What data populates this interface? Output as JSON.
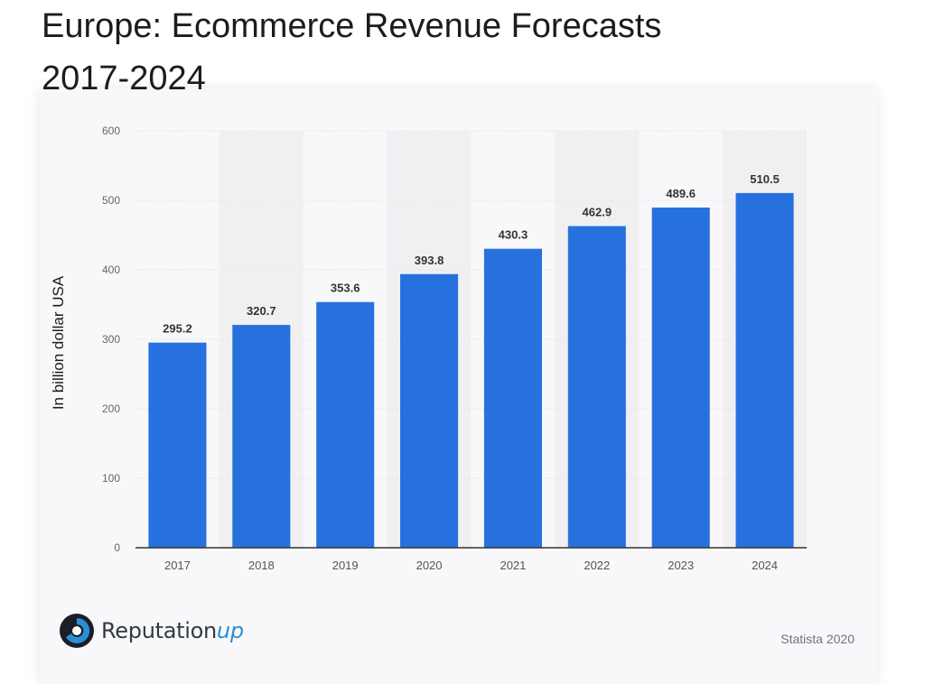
{
  "header": {
    "title_line1": "Europe: Ecommerce Revenue Forecasts",
    "title_line2": "2017-2024"
  },
  "chart_data": {
    "type": "bar",
    "title": "Europe: Ecommerce Revenue Forecasts 2017-2024",
    "xlabel": "",
    "ylabel": "In billion dollar USA",
    "categories": [
      "2017",
      "2018",
      "2019",
      "2020",
      "2021",
      "2022",
      "2023",
      "2024"
    ],
    "values": [
      295.2,
      320.7,
      353.6,
      393.8,
      430.3,
      462.9,
      489.6,
      510.5
    ],
    "data_labels": [
      "295.2",
      "320.7",
      "353.6",
      "393.8",
      "430.3",
      "462.9",
      "489.6",
      "510.5"
    ],
    "yticks": [
      0,
      100,
      200,
      300,
      400,
      500,
      600
    ],
    "ylim": [
      0,
      600
    ],
    "grid": true,
    "legend": "none",
    "bar_color": "#2771de"
  },
  "footer": {
    "logo_text": "Reputation",
    "logo_text_accent": "up",
    "source": "Statista 2020"
  }
}
